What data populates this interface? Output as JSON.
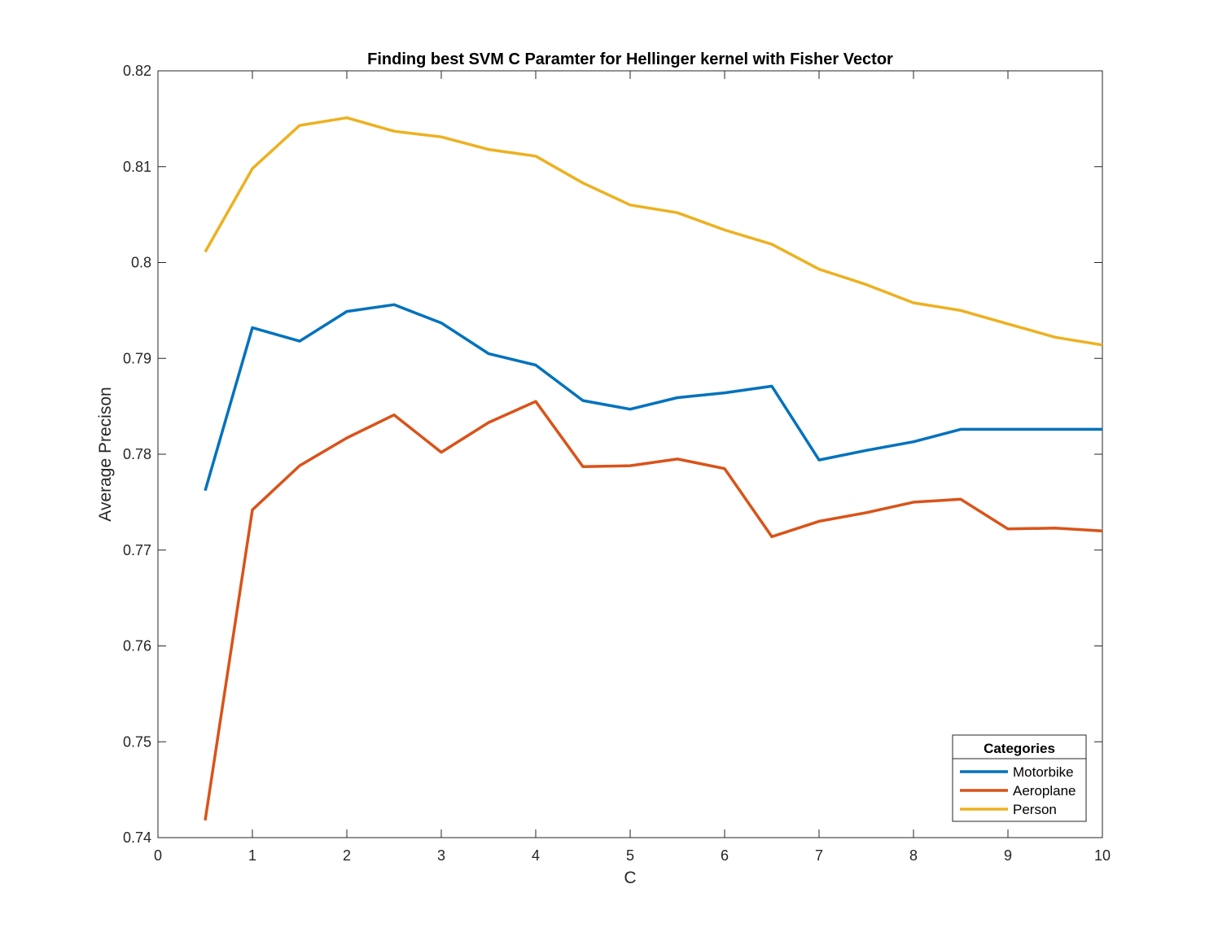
{
  "chart_data": {
    "type": "line",
    "title": "Finding best SVM C Paramter for Hellinger kernel with Fisher Vector",
    "xlabel": "C",
    "ylabel": "Average Precison",
    "xlim": [
      0,
      10
    ],
    "ylim": [
      0.74,
      0.82
    ],
    "xticks": [
      "0",
      "1",
      "2",
      "3",
      "4",
      "5",
      "6",
      "7",
      "8",
      "9",
      "10"
    ],
    "yticks": [
      "0.74",
      "0.75",
      "0.76",
      "0.77",
      "0.78",
      "0.79",
      "0.8",
      "0.81",
      "0.82"
    ],
    "grid": false,
    "legend": {
      "title": "Categories",
      "position": "bottom-right"
    },
    "x": [
      0.5,
      1,
      1.5,
      2,
      2.5,
      3,
      3.5,
      4,
      4.5,
      5,
      5.5,
      6,
      6.5,
      7,
      7.5,
      8,
      8.5,
      9,
      9.5,
      10
    ],
    "series": [
      {
        "name": "Motorbike",
        "color": "#0072BD",
        "values": [
          0.7762,
          0.7932,
          0.7918,
          0.7949,
          0.7956,
          0.7937,
          0.7905,
          0.7893,
          0.7856,
          0.7847,
          0.7859,
          0.7864,
          0.7871,
          0.7794,
          0.7804,
          0.7813,
          0.7826,
          0.7826,
          0.7826,
          0.7826
        ]
      },
      {
        "name": "Aeroplane",
        "color": "#D95319",
        "values": [
          0.7418,
          0.7742,
          0.7788,
          0.7817,
          0.7841,
          0.7802,
          0.7833,
          0.7855,
          0.7787,
          0.7788,
          0.7795,
          0.7785,
          0.7714,
          0.773,
          0.7739,
          0.775,
          0.7753,
          0.7722,
          0.7723,
          0.772
        ]
      },
      {
        "name": "Person",
        "color": "#EDB120",
        "values": [
          0.8011,
          0.8098,
          0.8143,
          0.8151,
          0.8137,
          0.8131,
          0.8118,
          0.8111,
          0.8083,
          0.806,
          0.8052,
          0.8034,
          0.8019,
          0.7993,
          0.7977,
          0.7958,
          0.795,
          0.7936,
          0.7922,
          0.7914
        ]
      }
    ]
  }
}
